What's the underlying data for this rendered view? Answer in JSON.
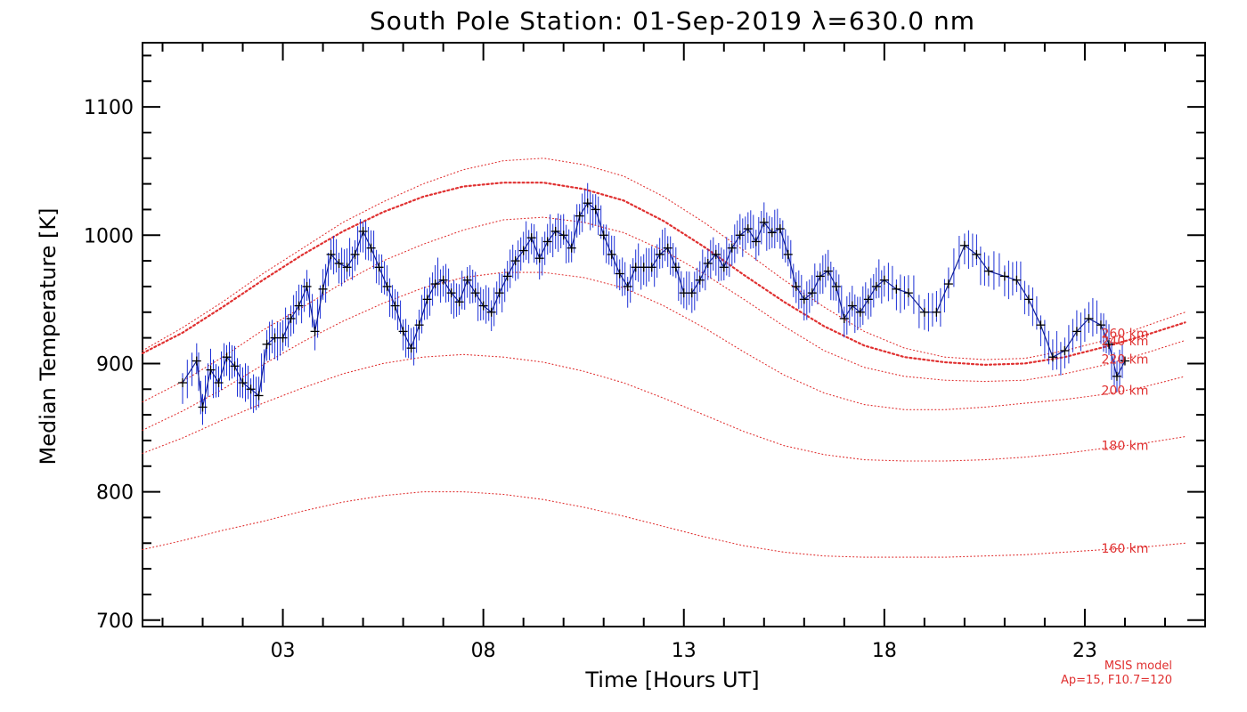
{
  "chart_data": {
    "type": "line",
    "title": "South Pole Station: 01-Sep-2019 λ=630.0 nm",
    "xlabel": "Time [Hours UT]",
    "ylabel": "Median Temperature [K]",
    "xlim": [
      -0.5,
      26
    ],
    "ylim": [
      695,
      1150
    ],
    "x_tick_values": [
      3,
      8,
      13,
      18,
      23
    ],
    "x_tick_labels": [
      "03",
      "08",
      "13",
      "18",
      "23"
    ],
    "x_minor_step": 1,
    "y_tick_values": [
      700,
      800,
      900,
      1000,
      1100
    ],
    "y_tick_labels": [
      "700",
      "800",
      "900",
      "1000",
      "1100"
    ],
    "y_minor_step": 20,
    "series_color": "#1a2ed6",
    "marker_color": "#000000",
    "model_color": "#e03030",
    "measurements": {
      "name": "Median temperature",
      "x": [
        0.5,
        0.85,
        1.0,
        1.2,
        1.4,
        1.6,
        1.8,
        2.0,
        2.2,
        2.4,
        2.6,
        2.8,
        3.0,
        3.2,
        3.4,
        3.6,
        3.8,
        4.0,
        4.2,
        4.4,
        4.6,
        4.8,
        5.0,
        5.2,
        5.4,
        5.6,
        5.8,
        6.0,
        6.2,
        6.4,
        6.6,
        6.8,
        7.0,
        7.2,
        7.4,
        7.6,
        7.8,
        8.0,
        8.2,
        8.4,
        8.6,
        8.8,
        9.0,
        9.2,
        9.4,
        9.6,
        9.8,
        10.0,
        10.2,
        10.4,
        10.6,
        10.8,
        11.0,
        11.2,
        11.4,
        11.6,
        11.8,
        12.0,
        12.2,
        12.4,
        12.6,
        12.8,
        13.0,
        13.2,
        13.4,
        13.6,
        13.8,
        14.0,
        14.2,
        14.4,
        14.6,
        14.8,
        15.0,
        15.2,
        15.4,
        15.6,
        15.8,
        16.0,
        16.2,
        16.4,
        16.6,
        16.8,
        17.0,
        17.2,
        17.4,
        17.6,
        17.8,
        18.0,
        18.3,
        18.6,
        19.0,
        19.3,
        19.6,
        20.0,
        20.3,
        20.6,
        21.0,
        21.3,
        21.6,
        21.9,
        22.2,
        22.5,
        22.8,
        23.1,
        23.4,
        23.6,
        23.8,
        24.0
      ],
      "y": [
        885,
        902,
        866,
        895,
        885,
        905,
        898,
        885,
        880,
        875,
        915,
        920,
        920,
        935,
        945,
        960,
        925,
        958,
        985,
        978,
        975,
        985,
        1003,
        990,
        975,
        960,
        945,
        925,
        912,
        930,
        950,
        962,
        965,
        955,
        948,
        965,
        955,
        945,
        940,
        955,
        968,
        980,
        988,
        998,
        982,
        995,
        1003,
        1000,
        990,
        1015,
        1025,
        1020,
        1000,
        985,
        970,
        960,
        975,
        975,
        975,
        985,
        990,
        975,
        955,
        955,
        965,
        978,
        985,
        975,
        990,
        1000,
        1005,
        995,
        1010,
        1002,
        1005,
        985,
        960,
        950,
        955,
        968,
        972,
        960,
        935,
        945,
        940,
        950,
        960,
        965,
        958,
        955,
        940,
        940,
        962,
        992,
        985,
        972,
        968,
        965,
        950,
        930,
        905,
        910,
        925,
        935,
        930,
        915,
        890,
        902
      ]
    },
    "msis_model": {
      "name": "MSIS model",
      "note_lines": [
        "MSIS model",
        "Ap=15, F10.7=120"
      ],
      "x": [
        -0.5,
        0.5,
        1.5,
        2.5,
        3.5,
        4.5,
        5.5,
        6.5,
        7.5,
        8.5,
        9.5,
        10.5,
        11.5,
        12.5,
        13.5,
        14.5,
        15.5,
        16.5,
        17.5,
        18.5,
        19.5,
        20.5,
        21.5,
        22.5,
        23.5,
        24.5,
        25.5
      ],
      "curves": [
        {
          "label": "260 km",
          "emphasized": false,
          "values": [
            910,
            928,
            948,
            970,
            990,
            1010,
            1026,
            1040,
            1051,
            1058,
            1060,
            1055,
            1046,
            1030,
            1010,
            988,
            965,
            944,
            925,
            912,
            905,
            903,
            904,
            910,
            918,
            929,
            940
          ]
        },
        {
          "label": "240 km",
          "emphasized": true,
          "values": [
            908,
            924,
            944,
            965,
            985,
            1003,
            1018,
            1030,
            1038,
            1041,
            1041,
            1036,
            1027,
            1011,
            991,
            969,
            948,
            929,
            914,
            905,
            901,
            899,
            900,
            905,
            913,
            922,
            932
          ]
        },
        {
          "label": "220 km",
          "emphasized": false,
          "values": [
            870,
            886,
            905,
            926,
            944,
            963,
            980,
            993,
            1004,
            1012,
            1014,
            1010,
            1002,
            988,
            970,
            950,
            929,
            910,
            897,
            890,
            887,
            886,
            887,
            892,
            899,
            908,
            918
          ]
        },
        {
          "label": "200 km",
          "emphasized": false,
          "values": [
            848,
            863,
            880,
            899,
            917,
            933,
            947,
            959,
            967,
            971,
            971,
            967,
            959,
            945,
            928,
            909,
            891,
            877,
            868,
            864,
            864,
            866,
            869,
            872,
            876,
            882,
            890
          ]
        },
        {
          "label": "180 km",
          "emphasized": false,
          "values": [
            830,
            842,
            856,
            869,
            881,
            892,
            900,
            905,
            907,
            905,
            901,
            894,
            885,
            873,
            860,
            847,
            836,
            829,
            825,
            824,
            824,
            825,
            827,
            830,
            834,
            838,
            843
          ]
        },
        {
          "label": "160 km",
          "emphasized": false,
          "values": [
            755,
            762,
            770,
            777,
            785,
            792,
            797,
            800,
            800,
            798,
            794,
            788,
            781,
            773,
            765,
            758,
            753,
            750,
            749,
            749,
            749,
            750,
            751,
            753,
            755,
            757,
            760
          ]
        }
      ]
    }
  }
}
